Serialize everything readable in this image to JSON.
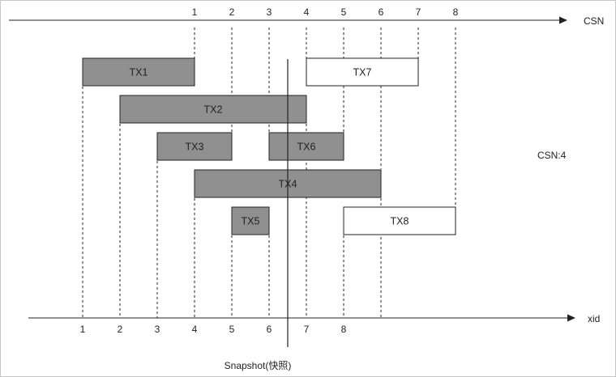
{
  "top_axis_label": "CSN",
  "bottom_axis_label": "xid",
  "csn_note": "CSN:4",
  "snapshot_label": "Snapshot(快照)",
  "top_ticks": [
    "1",
    "2",
    "3",
    "4",
    "5",
    "6",
    "7",
    "8"
  ],
  "bottom_ticks": [
    "1",
    "2",
    "3",
    "4",
    "5",
    "6",
    "7",
    "8"
  ],
  "transactions": [
    {
      "label": "TX1",
      "committed": true
    },
    {
      "label": "TX2",
      "committed": true
    },
    {
      "label": "TX3",
      "committed": true
    },
    {
      "label": "TX6",
      "committed": true
    },
    {
      "label": "TX4",
      "committed": true
    },
    {
      "label": "TX5",
      "committed": true
    },
    {
      "label": "TX7",
      "committed": false
    },
    {
      "label": "TX8",
      "committed": false
    }
  ],
  "colors": {
    "committed_fill": "#909090",
    "open_fill": "#ffffff",
    "stroke": "#222222"
  }
}
